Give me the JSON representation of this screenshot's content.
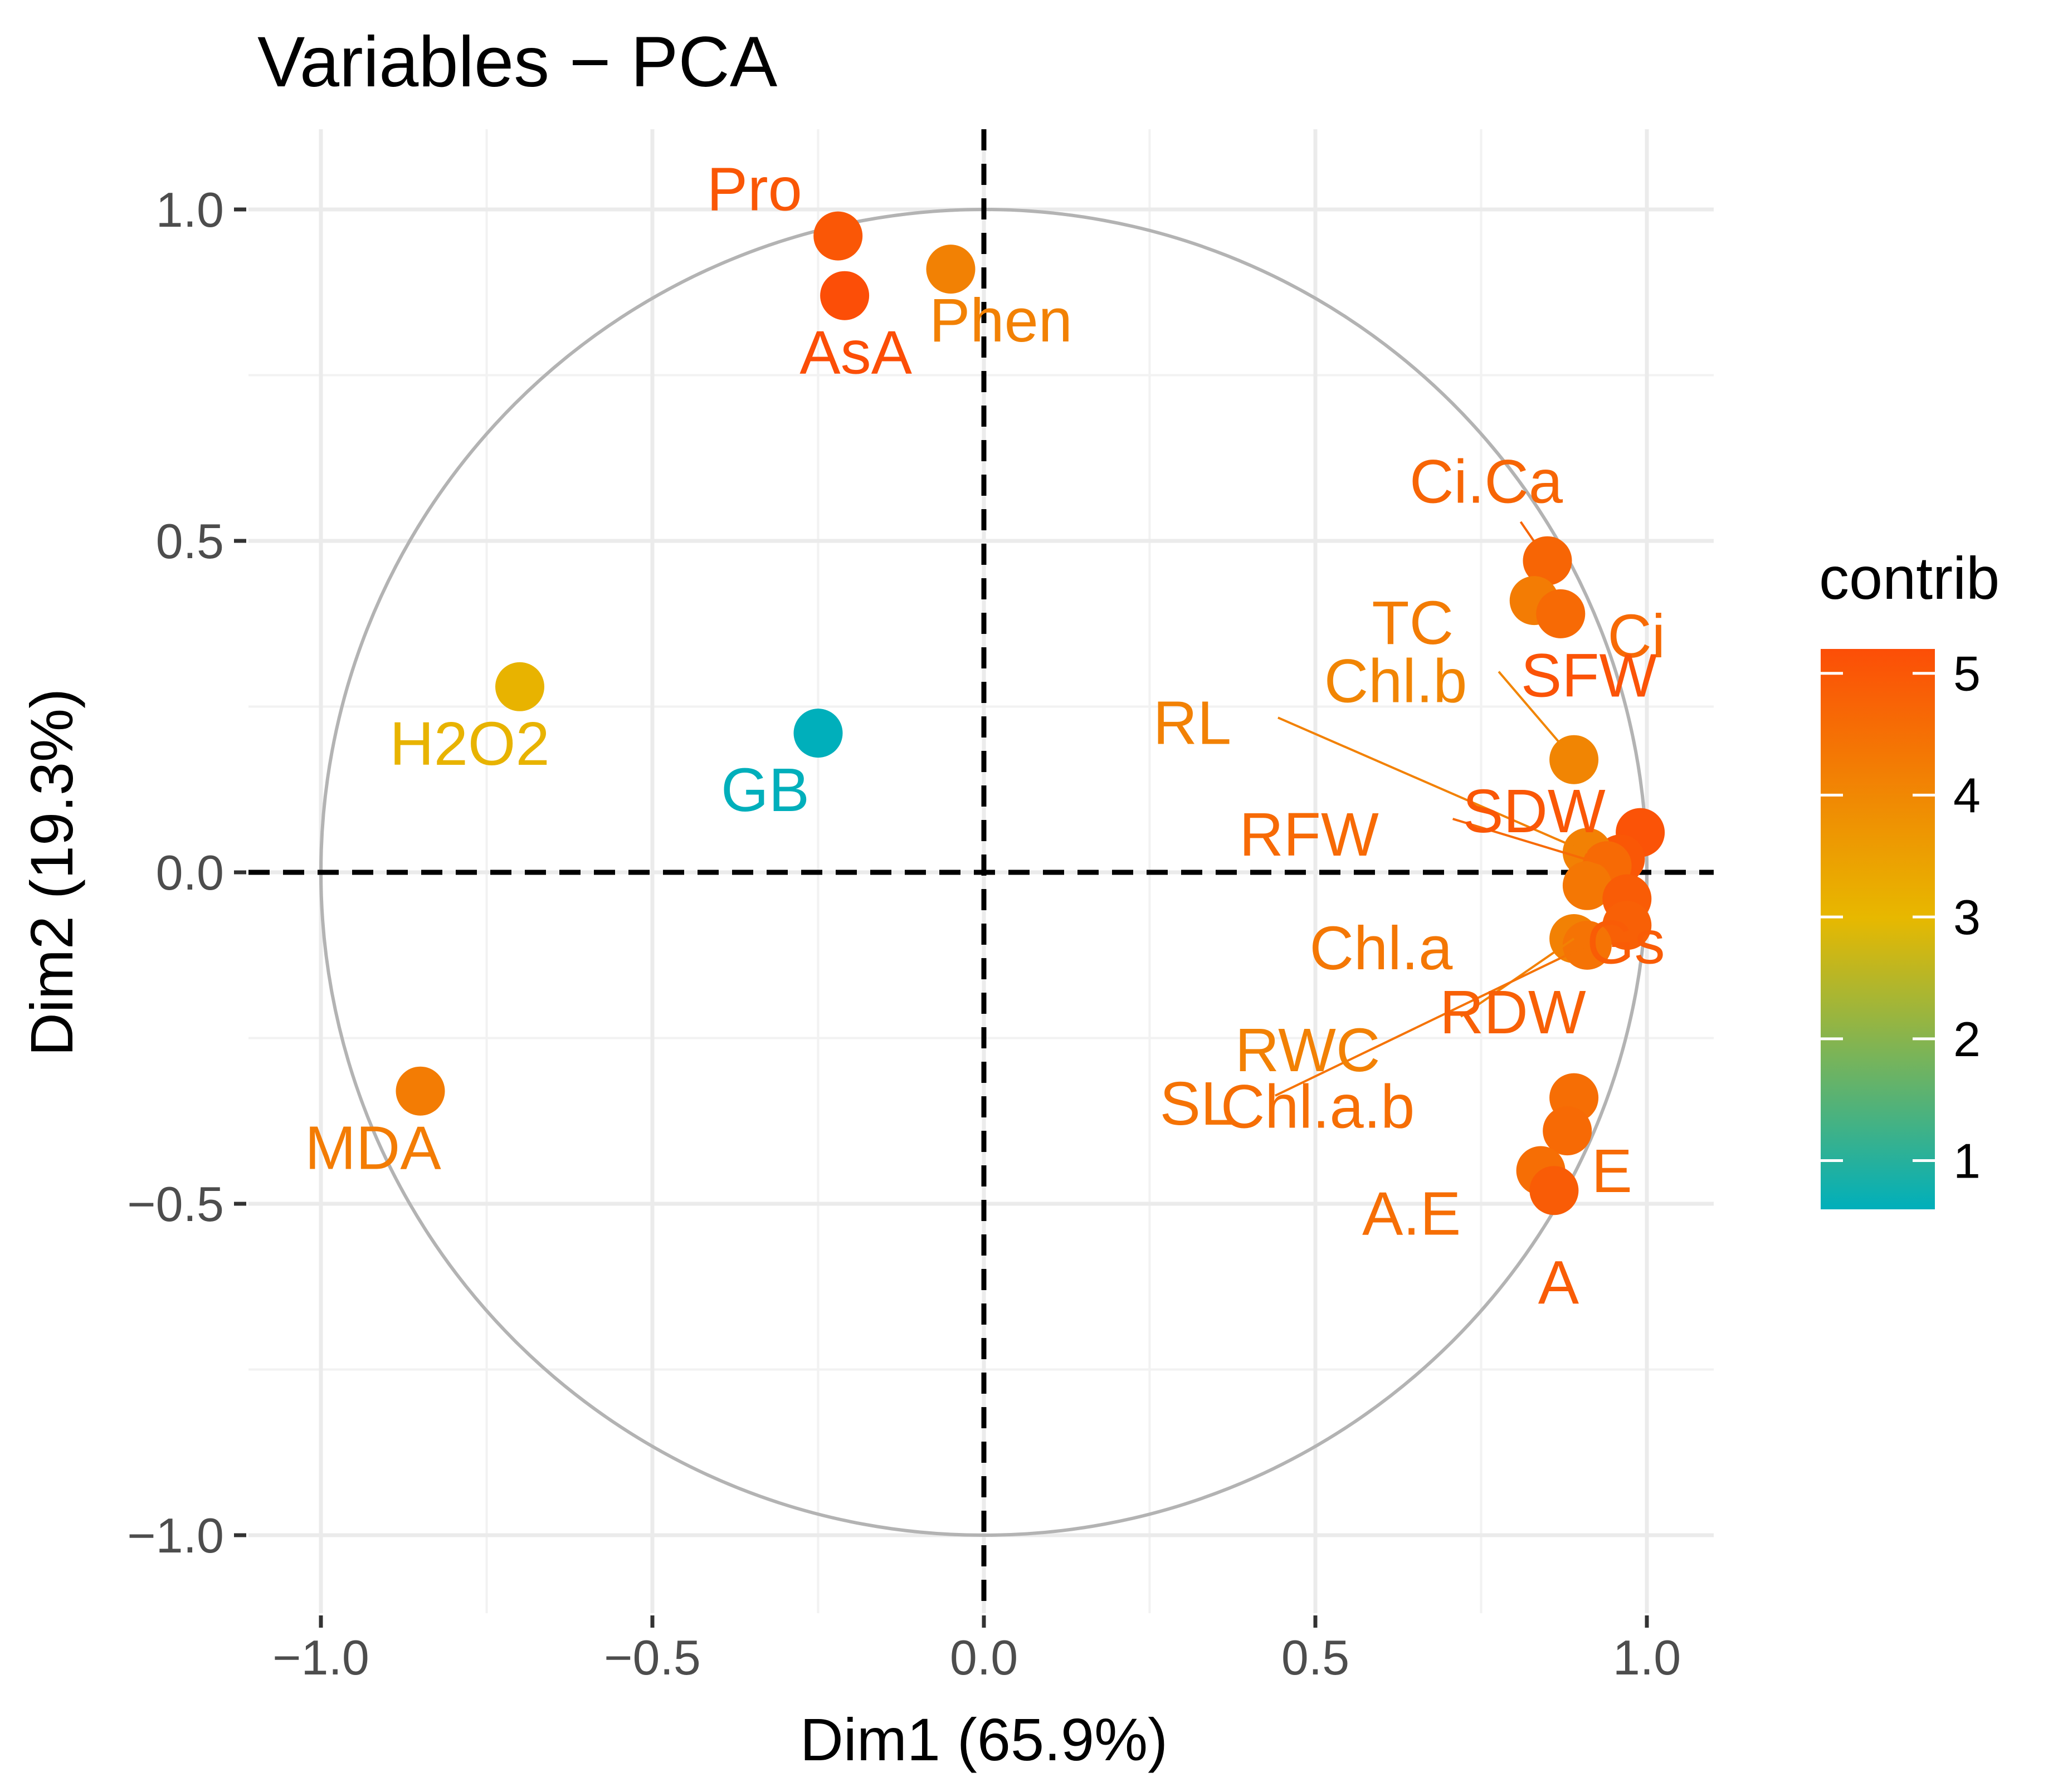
{
  "chart_data": {
    "type": "scatter",
    "title": "Variables − PCA",
    "xlabel": "Dim1 (65.9%)",
    "ylabel": "Dim2 (19.3%)",
    "xlim": [
      -1.0,
      1.0
    ],
    "ylim": [
      -1.0,
      1.0
    ],
    "xticks": [
      -1.0,
      -0.5,
      0.0,
      0.5,
      1.0
    ],
    "yticks": [
      -1.0,
      -0.5,
      0.0,
      0.5,
      1.0
    ],
    "xtick_labels": [
      "−1.0",
      "−0.5",
      "0.0",
      "0.5",
      "1.0"
    ],
    "ytick_labels": [
      "−1.0",
      "−0.5",
      "0.0",
      "0.5",
      "1.0"
    ],
    "grid": true,
    "unit_circle": true,
    "reference_lines": "dashed lines at x = 0 and y = 0",
    "legend": {
      "title": "contrib",
      "placement": "right",
      "range": [
        0.6,
        5.2
      ],
      "ticks": [
        1,
        2,
        3,
        4,
        5
      ],
      "colors": {
        "low": "#00AFBB",
        "mid": "#E7B800",
        "high": "#FC4E07"
      }
    },
    "points": [
      {
        "label": "Pro",
        "x": -0.22,
        "y": 0.96,
        "contrib": 5.0
      },
      {
        "label": "AsA",
        "x": -0.21,
        "y": 0.87,
        "contrib": 5.2
      },
      {
        "label": "Phen",
        "x": -0.05,
        "y": 0.91,
        "contrib": 4.1
      },
      {
        "label": "H2O2",
        "x": -0.7,
        "y": 0.28,
        "contrib": 3.0
      },
      {
        "label": "GB",
        "x": -0.25,
        "y": 0.21,
        "contrib": 0.6
      },
      {
        "label": "MDA",
        "x": -0.85,
        "y": -0.33,
        "contrib": 4.2
      },
      {
        "label": "Ci.Ca",
        "x": 0.85,
        "y": 0.47,
        "contrib": 4.7
      },
      {
        "label": "TC",
        "x": 0.83,
        "y": 0.41,
        "contrib": 4.2
      },
      {
        "label": "Ci",
        "x": 0.87,
        "y": 0.39,
        "contrib": 4.6
      },
      {
        "label": "Chl.b",
        "x": 0.89,
        "y": 0.17,
        "contrib": 4.0
      },
      {
        "label": "SFW",
        "x": 0.99,
        "y": 0.06,
        "contrib": 5.1
      },
      {
        "label": "SDW",
        "x": 0.96,
        "y": 0.02,
        "contrib": 5.0
      },
      {
        "label": "RL",
        "x": 0.91,
        "y": 0.03,
        "contrib": 4.1
      },
      {
        "label": "RFW",
        "x": 0.94,
        "y": 0.01,
        "contrib": 4.6
      },
      {
        "label": "Chl.a",
        "x": 0.91,
        "y": -0.02,
        "contrib": 4.3
      },
      {
        "label": "Gs",
        "x": 0.97,
        "y": -0.04,
        "contrib": 4.9
      },
      {
        "label": "RDW",
        "x": 0.97,
        "y": -0.08,
        "contrib": 4.8
      },
      {
        "label": "RWC",
        "x": 0.89,
        "y": -0.1,
        "contrib": 4.1
      },
      {
        "label": "SL",
        "x": 0.91,
        "y": -0.11,
        "contrib": 4.4
      },
      {
        "label": "Chl.a.b",
        "x": 0.89,
        "y": -0.34,
        "contrib": 4.5
      },
      {
        "label": "E",
        "x": 0.88,
        "y": -0.39,
        "contrib": 4.6
      },
      {
        "label": "A.E",
        "x": 0.84,
        "y": -0.45,
        "contrib": 4.5
      },
      {
        "label": "A",
        "x": 0.86,
        "y": -0.48,
        "contrib": 4.9
      }
    ]
  }
}
